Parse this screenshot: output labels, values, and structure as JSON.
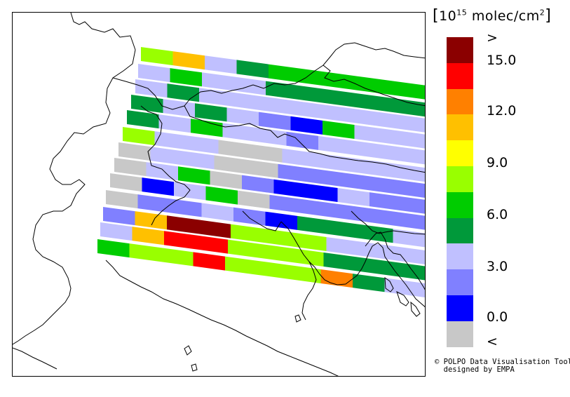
{
  "legend": {
    "title": {
      "open": "[",
      "base": "10",
      "exp": "15",
      "text": " molec/cm",
      "sq": "2",
      "close": "]"
    },
    "tick_labels": [
      ">",
      "15.0",
      "12.0",
      "9.0",
      "6.0",
      "3.0",
      "0.0",
      "<"
    ],
    "colors": [
      "#8b0000",
      "#ff0000",
      "#ff8000",
      "#ffc000",
      "#ffff00",
      "#99ff00",
      "#00cc00",
      "#00993a",
      "#c0c0ff",
      "#8080ff",
      "#0000ff",
      "#c8c8c8"
    ]
  },
  "credits": {
    "line1": "© POLPO Data Visualisation Tool",
    "line2": "  designed by EMPA"
  },
  "color_classes": {
    "G": "#c8c8c8",
    "B": "#0000ff",
    "M": "#8080ff",
    "L": "#c0c0ff",
    "D": "#00993a",
    "N": "#00cc00",
    "Y": "#99ff00",
    "Q": "#ffff00",
    "O": "#ffc000",
    "A": "#ff8000",
    "R": "#ff0000",
    "K": "#8b0000"
  },
  "swaths": [
    "YOLDNNNNNNNNNN",
    "LNLLDDDDDNNNMM",
    "LDLLLLLLLLLMMM",
    "DLDLMBNLLLMLBM",
    "DLNLLMLLLLLBNL",
    "YLLGGLLLLLLLML",
    "GLLGGMMMMMMMMM",
    "GLNGMBBLMMLLLN",
    "GBLNGMMMMMMNDN",
    "GMMLMBDDDLDMLM",
    "MOKKYYYLLLLMMB",
    "LORRYYYDDDDBBBB",
    "NYYRYYYADLLBBB",
    "NYYYYQQNYYNLBB",
    "NYYYYLLLNYNLLLB"
  ],
  "map": {
    "labels": []
  }
}
